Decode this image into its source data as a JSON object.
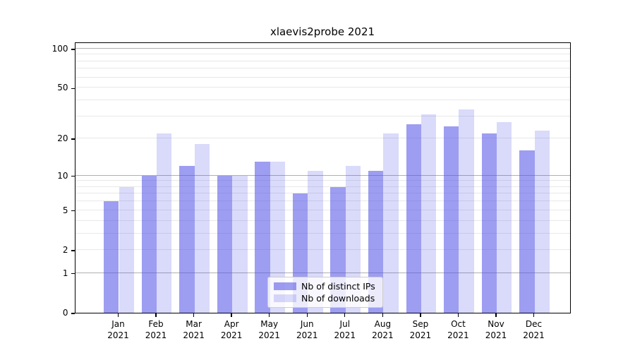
{
  "chart_data": {
    "type": "bar",
    "title": "xlaevis2probe 2021",
    "xlabel": "",
    "ylabel": "",
    "months": [
      "Jan",
      "Feb",
      "Mar",
      "Apr",
      "May",
      "Jun",
      "Jul",
      "Aug",
      "Sep",
      "Oct",
      "Nov",
      "Dec"
    ],
    "year": "2021",
    "series": [
      {
        "name": "Nb of distinct IPs",
        "color": "rgba(80,80,230,0.56)",
        "composite_hex": "#9d9df1",
        "values": [
          6,
          10,
          12,
          10,
          13,
          7,
          8,
          11,
          26,
          25,
          22,
          16
        ]
      },
      {
        "name": "Nb of downloads",
        "color": "rgba(80,80,230,0.21)",
        "composite_hex": "#dadafa",
        "values": [
          8,
          22,
          18,
          10,
          13,
          11,
          12,
          22,
          31,
          34,
          27,
          23
        ]
      }
    ],
    "yscale": "log1p",
    "ylim": [
      0,
      113
    ],
    "yticks": [
      0,
      1,
      2,
      5,
      10,
      20,
      50,
      100
    ],
    "grid": {
      "major_values": [
        1,
        10,
        100
      ],
      "minor_values": [
        2,
        3,
        4,
        5,
        6,
        7,
        8,
        9,
        20,
        30,
        40,
        50,
        60,
        70,
        80,
        90
      ],
      "major_color": "#b0b0b0",
      "minor_color": "#e8e8e8"
    },
    "legend_position": "bottom-center"
  }
}
